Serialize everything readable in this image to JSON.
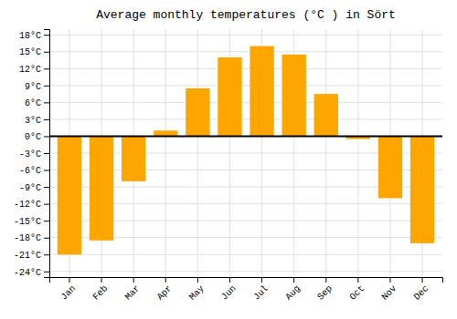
{
  "chart_data": {
    "type": "bar",
    "title": "Average monthly temperatures (°C ) in Sört",
    "categories": [
      "Jan",
      "Feb",
      "Mar",
      "Apr",
      "May",
      "Jun",
      "Jul",
      "Aug",
      "Sep",
      "Oct",
      "Nov",
      "Dec"
    ],
    "values": [
      -21,
      -18.5,
      -8,
      1,
      8.5,
      14,
      16,
      14.5,
      7.5,
      -0.5,
      -11,
      -19
    ],
    "color": "#FFA500",
    "ylim": [
      -25,
      19
    ],
    "yticks": [
      {
        "value": -24,
        "label": "-24°C"
      },
      {
        "value": -21,
        "label": "-21°C"
      },
      {
        "value": -18,
        "label": "-18°C"
      },
      {
        "value": -15,
        "label": "-15°C"
      },
      {
        "value": -12,
        "label": "-12°C"
      },
      {
        "value": -9,
        "label": "-9°C"
      },
      {
        "value": -6,
        "label": "-6°C"
      },
      {
        "value": -3,
        "label": "-3°C"
      },
      {
        "value": 0,
        "label": "0°C"
      },
      {
        "value": 3,
        "label": "3°C"
      },
      {
        "value": 6,
        "label": "6°C"
      },
      {
        "value": 9,
        "label": "9°C"
      },
      {
        "value": 12,
        "label": "12°C"
      },
      {
        "value": 15,
        "label": "15°C"
      },
      {
        "value": 18,
        "label": "18°C"
      }
    ],
    "grid": true
  }
}
